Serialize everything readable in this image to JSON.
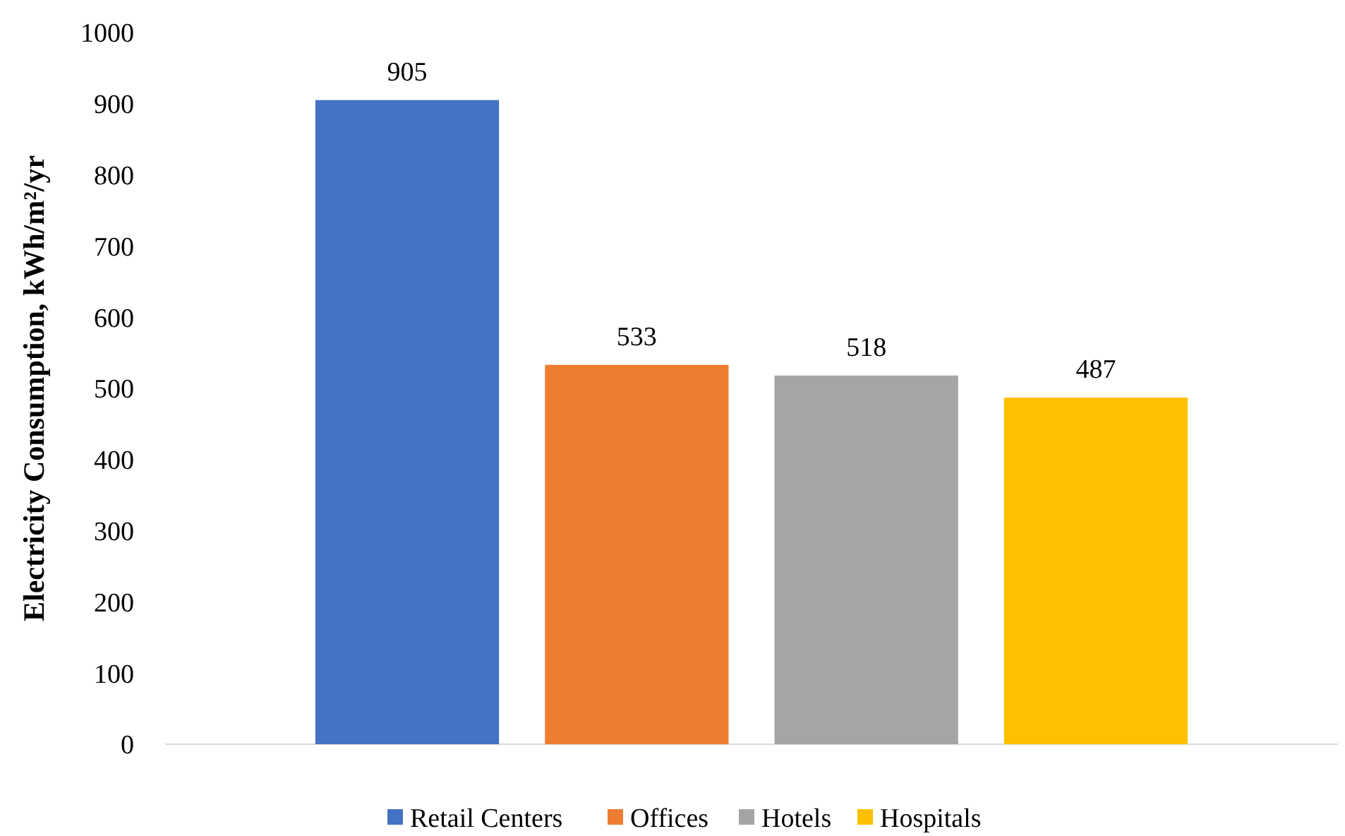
{
  "chart_data": {
    "type": "bar",
    "ylabel": "Electricity Consumption, kWh/m²/yr",
    "categories": [
      null
    ],
    "series": [
      {
        "name": "Retail Centers",
        "color": "#4472c4",
        "values": [
          905
        ]
      },
      {
        "name": "Offices",
        "color": "#ed7d31",
        "values": [
          533
        ]
      },
      {
        "name": "Hotels",
        "color": "#a5a5a5",
        "values": [
          518
        ]
      },
      {
        "name": "Hospitals",
        "color": "#ffc000",
        "values": [
          487
        ]
      }
    ],
    "ylim": [
      0,
      1000
    ],
    "yticks": [
      0,
      100,
      200,
      300,
      400,
      500,
      600,
      700,
      800,
      900,
      1000
    ],
    "data_labels": true,
    "legend": "bottom"
  }
}
